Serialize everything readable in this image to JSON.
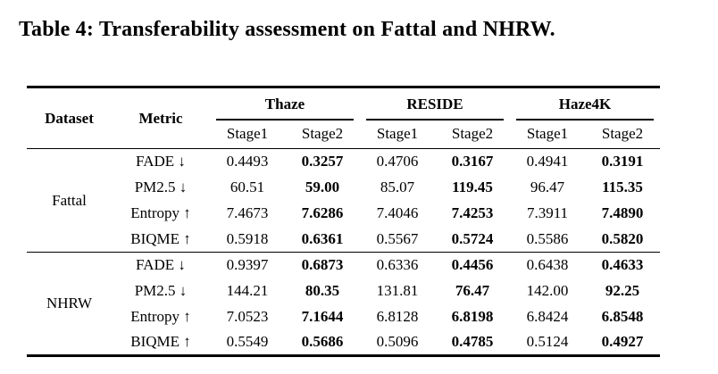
{
  "title": "Table 4: Transferability assessment on Fattal and NHRW.",
  "table": {
    "col_headers": {
      "dataset": "Dataset",
      "metric": "Metric"
    },
    "groups": [
      {
        "label": "Thaze",
        "subcols": [
          "Stage1",
          "Stage2"
        ]
      },
      {
        "label": "RESIDE",
        "subcols": [
          "Stage1",
          "Stage2"
        ]
      },
      {
        "label": "Haze4K",
        "subcols": [
          "Stage1",
          "Stage2"
        ]
      }
    ],
    "blocks": [
      {
        "dataset": "Fattal",
        "rows": [
          {
            "metric": "FADE ↓",
            "values": [
              "0.4493",
              "0.3257",
              "0.4706",
              "0.3167",
              "0.4941",
              "0.3191"
            ]
          },
          {
            "metric": "PM2.5 ↓",
            "values": [
              "60.51",
              "59.00",
              "85.07",
              "119.45",
              "96.47",
              "115.35"
            ]
          },
          {
            "metric": "Entropy ↑",
            "values": [
              "7.4673",
              "7.6286",
              "7.4046",
              "7.4253",
              "7.3911",
              "7.4890"
            ]
          },
          {
            "metric": "BIQME ↑",
            "values": [
              "0.5918",
              "0.6361",
              "0.5567",
              "0.5724",
              "0.5586",
              "0.5820"
            ]
          }
        ]
      },
      {
        "dataset": "NHRW",
        "rows": [
          {
            "metric": "FADE ↓",
            "values": [
              "0.9397",
              "0.6873",
              "0.6336",
              "0.4456",
              "0.6438",
              "0.4633"
            ]
          },
          {
            "metric": "PM2.5 ↓",
            "values": [
              "144.21",
              "80.35",
              "131.81",
              "76.47",
              "142.00",
              "92.25"
            ]
          },
          {
            "metric": "Entropy ↑",
            "values": [
              "7.0523",
              "7.1644",
              "6.8128",
              "6.8198",
              "6.8424",
              "6.8548"
            ]
          },
          {
            "metric": "BIQME ↑",
            "values": [
              "0.5549",
              "0.5686",
              "0.5096",
              "0.4785",
              "0.5124",
              "0.4927"
            ]
          }
        ]
      }
    ]
  }
}
